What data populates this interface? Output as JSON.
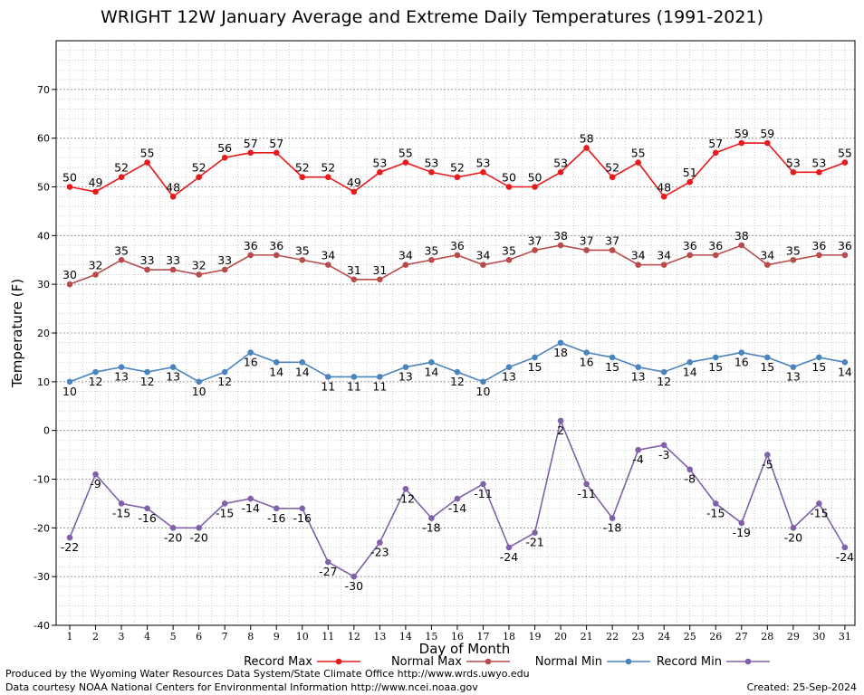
{
  "footer": {
    "credit_line_1": "Produced by the Wyoming Water Resources Data System/State Climate Office http://www.wrds.uwyo.edu",
    "credit_line_2": "Data courtesy NOAA National Centers for Environmental Information http://www.ncei.noaa.gov",
    "created": "Created:  25-Sep-2024"
  },
  "chart_data": {
    "type": "line",
    "title": "WRIGHT 12W January Average and Extreme Daily Temperatures (1991-2021)",
    "xlabel": "Day of Month",
    "ylabel": "Temperature (F)",
    "x": [
      1,
      2,
      3,
      4,
      5,
      6,
      7,
      8,
      9,
      10,
      11,
      12,
      13,
      14,
      15,
      16,
      17,
      18,
      19,
      20,
      21,
      22,
      23,
      24,
      25,
      26,
      27,
      28,
      29,
      30,
      31
    ],
    "xlim": [
      1,
      31
    ],
    "ylim": [
      -40,
      80
    ],
    "yticks": [
      -40,
      -30,
      -20,
      -10,
      0,
      10,
      20,
      30,
      40,
      50,
      60,
      70
    ],
    "grid": true,
    "legend_position": "bottom",
    "series": [
      {
        "name": "Record Max",
        "color": "#e8191c",
        "label_position": "above",
        "values": [
          50,
          49,
          52,
          55,
          48,
          52,
          56,
          57,
          57,
          52,
          52,
          49,
          53,
          55,
          53,
          52,
          53,
          50,
          50,
          53,
          58,
          52,
          55,
          48,
          51,
          57,
          59,
          59,
          53,
          53,
          55
        ]
      },
      {
        "name": "Normal Max",
        "color": "#b94a4a",
        "label_position": "above",
        "values": [
          30,
          32,
          35,
          33,
          33,
          32,
          33,
          36,
          36,
          35,
          34,
          31,
          31,
          34,
          35,
          36,
          34,
          35,
          37,
          38,
          37,
          37,
          34,
          34,
          36,
          36,
          38,
          34,
          35,
          36,
          36
        ]
      },
      {
        "name": "Normal Min",
        "color": "#4a84bd",
        "label_position": "below",
        "values": [
          10,
          12,
          13,
          12,
          13,
          10,
          12,
          16,
          14,
          14,
          11,
          11,
          11,
          13,
          14,
          12,
          10,
          13,
          15,
          18,
          16,
          15,
          13,
          12,
          14,
          15,
          16,
          15,
          13,
          15,
          14
        ]
      },
      {
        "name": "Record Min",
        "color": "#8060a8",
        "label_position": "below",
        "values": [
          -22,
          -9,
          -15,
          -16,
          -20,
          -20,
          -15,
          -14,
          -16,
          -16,
          -27,
          -30,
          -23,
          -12,
          -18,
          -14,
          -11,
          -24,
          -21,
          2,
          -11,
          -18,
          -4,
          -3,
          -8,
          -15,
          -19,
          -5,
          -20,
          -15,
          -24
        ]
      }
    ]
  }
}
